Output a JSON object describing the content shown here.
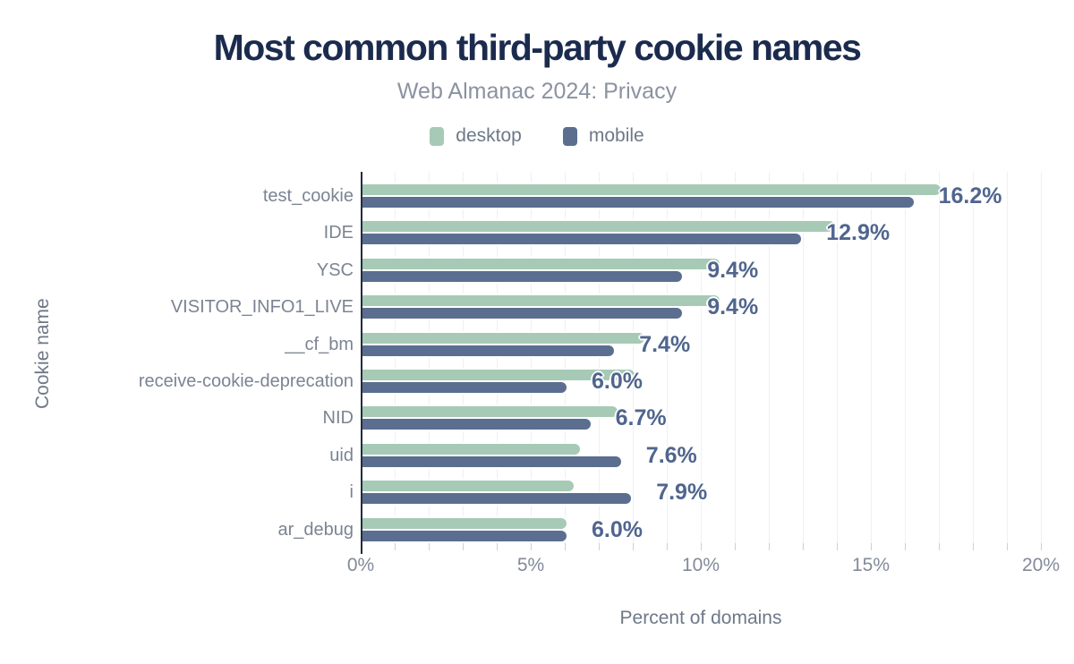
{
  "header": {
    "title": "Most common third-party cookie names",
    "subtitle": "Web Almanac 2024: Privacy"
  },
  "chart_data": {
    "type": "bar",
    "orientation": "horizontal",
    "title": "Most common third-party cookie names",
    "subtitle": "Web Almanac 2024: Privacy",
    "xlabel": "Percent of domains",
    "ylabel": "Cookie name",
    "xlim": [
      0,
      20
    ],
    "x_ticks": [
      {
        "label": "0%",
        "value": 0
      },
      {
        "label": "5%",
        "value": 5
      },
      {
        "label": "10%",
        "value": 10
      },
      {
        "label": "15%",
        "value": 15
      },
      {
        "label": "20%",
        "value": 20
      }
    ],
    "minor_tick_step_pct": 1,
    "grid": "vertical minor gridlines every 1%",
    "legend_position": "top",
    "categories": [
      "test_cookie",
      "IDE",
      "YSC",
      "VISITOR_INFO1_LIVE",
      "__cf_bm",
      "receive-cookie-deprecation",
      "NID",
      "uid",
      "i",
      "ar_debug"
    ],
    "series": [
      {
        "name": "desktop",
        "color": "#a6cab6",
        "values": [
          17.0,
          13.9,
          10.5,
          10.5,
          8.3,
          8.0,
          7.5,
          6.4,
          6.2,
          6.0
        ]
      },
      {
        "name": "mobile",
        "color": "#5b6e90",
        "values": [
          16.2,
          12.9,
          9.4,
          9.4,
          7.4,
          6.0,
          6.7,
          7.6,
          7.9,
          6.0
        ]
      }
    ],
    "data_labels": {
      "labeled_series": "mobile",
      "values": [
        "16.2%",
        "12.9%",
        "9.4%",
        "9.4%",
        "7.4%",
        "6.0%",
        "6.7%",
        "7.6%",
        "7.9%",
        "6.0%"
      ]
    }
  },
  "colors": {
    "title": "#1b2b4e",
    "subtitle_gray": "#8b92a0",
    "text_gray": "#6e7888",
    "category_label_gray": "#7b8493",
    "tick_label_gray": "#828a99",
    "desktop_green": "#a6cab6",
    "mobile_slate": "#5b6e90",
    "data_label_blue": "#50658e",
    "axis_line": "#232c3d",
    "gridline": "#eef0f3",
    "background": "#ffffff"
  }
}
